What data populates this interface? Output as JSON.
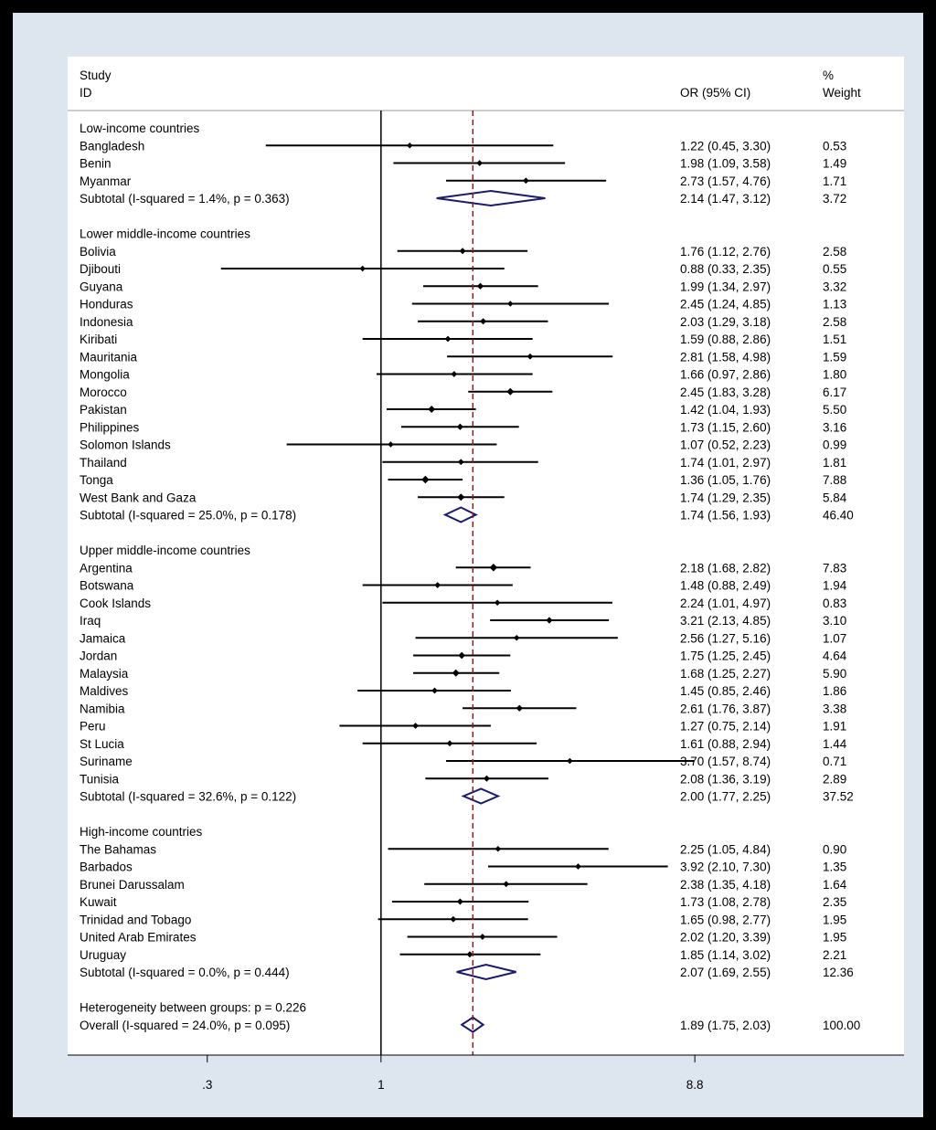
{
  "header": {
    "study_label": "Study",
    "id_label": "ID",
    "or_label": "OR (95% CI)",
    "weight_pct": "%",
    "weight_label": "Weight"
  },
  "colors": {
    "background": "#000000",
    "frame": "#dde6ee",
    "panel": "#ffffff",
    "diamond": "#1a1a6e",
    "overall_line": "#8b1a1a"
  },
  "chart_data": {
    "type": "forest",
    "x_scale": "log",
    "x_ticks": [
      0.3,
      1,
      8.8
    ],
    "x_tick_labels": [
      ".3",
      "1",
      "8.8"
    ],
    "xlim": [
      0.114,
      37.5
    ],
    "null_line": 1,
    "overall_estimate": 1.89,
    "groups": [
      {
        "name": "Low-income countries",
        "studies": [
          {
            "label": "Bangladesh",
            "or": 1.22,
            "lo": 0.45,
            "hi": 3.3,
            "ci_text": "1.22 (0.45, 3.30)",
            "weight": "0.53"
          },
          {
            "label": "Benin",
            "or": 1.98,
            "lo": 1.09,
            "hi": 3.58,
            "ci_text": "1.98 (1.09, 3.58)",
            "weight": "1.49"
          },
          {
            "label": "Myanmar",
            "or": 2.73,
            "lo": 1.57,
            "hi": 4.76,
            "ci_text": "2.73 (1.57, 4.76)",
            "weight": "1.71"
          }
        ],
        "subtotal": {
          "label": "Subtotal  (I-squared = 1.4%, p = 0.363)",
          "or": 2.14,
          "lo": 1.47,
          "hi": 3.12,
          "ci_text": "2.14 (1.47, 3.12)",
          "weight": "3.72"
        }
      },
      {
        "name": "Lower middle-income countries",
        "studies": [
          {
            "label": "Bolivia",
            "or": 1.76,
            "lo": 1.12,
            "hi": 2.76,
            "ci_text": "1.76 (1.12, 2.76)",
            "weight": "2.58"
          },
          {
            "label": "Djibouti",
            "or": 0.88,
            "lo": 0.33,
            "hi": 2.35,
            "ci_text": "0.88 (0.33, 2.35)",
            "weight": "0.55"
          },
          {
            "label": "Guyana",
            "or": 1.99,
            "lo": 1.34,
            "hi": 2.97,
            "ci_text": "1.99 (1.34, 2.97)",
            "weight": "3.32"
          },
          {
            "label": "Honduras",
            "or": 2.45,
            "lo": 1.24,
            "hi": 4.85,
            "ci_text": "2.45 (1.24, 4.85)",
            "weight": "1.13"
          },
          {
            "label": "Indonesia",
            "or": 2.03,
            "lo": 1.29,
            "hi": 3.18,
            "ci_text": "2.03 (1.29, 3.18)",
            "weight": "2.58"
          },
          {
            "label": "Kiribati",
            "or": 1.59,
            "lo": 0.88,
            "hi": 2.86,
            "ci_text": "1.59 (0.88, 2.86)",
            "weight": "1.51"
          },
          {
            "label": "Mauritania",
            "or": 2.81,
            "lo": 1.58,
            "hi": 4.98,
            "ci_text": "2.81 (1.58, 4.98)",
            "weight": "1.59"
          },
          {
            "label": "Mongolia",
            "or": 1.66,
            "lo": 0.97,
            "hi": 2.86,
            "ci_text": "1.66 (0.97, 2.86)",
            "weight": "1.80"
          },
          {
            "label": "Morocco",
            "or": 2.45,
            "lo": 1.83,
            "hi": 3.28,
            "ci_text": "2.45 (1.83, 3.28)",
            "weight": "6.17"
          },
          {
            "label": "Pakistan",
            "or": 1.42,
            "lo": 1.04,
            "hi": 1.93,
            "ci_text": "1.42 (1.04, 1.93)",
            "weight": "5.50"
          },
          {
            "label": "Philippines",
            "or": 1.73,
            "lo": 1.15,
            "hi": 2.6,
            "ci_text": "1.73 (1.15, 2.60)",
            "weight": "3.16"
          },
          {
            "label": "Solomon Islands",
            "or": 1.07,
            "lo": 0.52,
            "hi": 2.23,
            "ci_text": "1.07 (0.52, 2.23)",
            "weight": "0.99"
          },
          {
            "label": "Thailand",
            "or": 1.74,
            "lo": 1.01,
            "hi": 2.97,
            "ci_text": "1.74 (1.01, 2.97)",
            "weight": "1.81"
          },
          {
            "label": "Tonga",
            "or": 1.36,
            "lo": 1.05,
            "hi": 1.76,
            "ci_text": "1.36 (1.05, 1.76)",
            "weight": "7.88"
          },
          {
            "label": "West Bank and Gaza",
            "or": 1.74,
            "lo": 1.29,
            "hi": 2.35,
            "ci_text": "1.74 (1.29, 2.35)",
            "weight": "5.84"
          }
        ],
        "subtotal": {
          "label": "Subtotal  (I-squared = 25.0%, p = 0.178)",
          "or": 1.74,
          "lo": 1.56,
          "hi": 1.93,
          "ci_text": "1.74 (1.56, 1.93)",
          "weight": "46.40"
        }
      },
      {
        "name": "Upper middle-income countries",
        "studies": [
          {
            "label": "Argentina",
            "or": 2.18,
            "lo": 1.68,
            "hi": 2.82,
            "ci_text": "2.18 (1.68, 2.82)",
            "weight": "7.83"
          },
          {
            "label": "Botswana",
            "or": 1.48,
            "lo": 0.88,
            "hi": 2.49,
            "ci_text": "1.48 (0.88, 2.49)",
            "weight": "1.94"
          },
          {
            "label": "Cook Islands",
            "or": 2.24,
            "lo": 1.01,
            "hi": 4.97,
            "ci_text": "2.24 (1.01, 4.97)",
            "weight": "0.83"
          },
          {
            "label": "Iraq",
            "or": 3.21,
            "lo": 2.13,
            "hi": 4.85,
            "ci_text": "3.21 (2.13, 4.85)",
            "weight": "3.10"
          },
          {
            "label": "Jamaica",
            "or": 2.56,
            "lo": 1.27,
            "hi": 5.16,
            "ci_text": "2.56 (1.27, 5.16)",
            "weight": "1.07"
          },
          {
            "label": "Jordan",
            "or": 1.75,
            "lo": 1.25,
            "hi": 2.45,
            "ci_text": "1.75 (1.25, 2.45)",
            "weight": "4.64"
          },
          {
            "label": "Malaysia",
            "or": 1.68,
            "lo": 1.25,
            "hi": 2.27,
            "ci_text": "1.68 (1.25, 2.27)",
            "weight": "5.90"
          },
          {
            "label": "Maldives",
            "or": 1.45,
            "lo": 0.85,
            "hi": 2.46,
            "ci_text": "1.45 (0.85, 2.46)",
            "weight": "1.86"
          },
          {
            "label": "Namibia",
            "or": 2.61,
            "lo": 1.76,
            "hi": 3.87,
            "ci_text": "2.61 (1.76, 3.87)",
            "weight": "3.38"
          },
          {
            "label": "Peru",
            "or": 1.27,
            "lo": 0.75,
            "hi": 2.14,
            "ci_text": "1.27 (0.75, 2.14)",
            "weight": "1.91"
          },
          {
            "label": "St Lucia",
            "or": 1.61,
            "lo": 0.88,
            "hi": 2.94,
            "ci_text": "1.61 (0.88, 2.94)",
            "weight": "1.44"
          },
          {
            "label": "Suriname",
            "or": 3.7,
            "lo": 1.57,
            "hi": 8.74,
            "ci_text": "3.70 (1.57, 8.74)",
            "weight": "0.71"
          },
          {
            "label": "Tunisia",
            "or": 2.08,
            "lo": 1.36,
            "hi": 3.19,
            "ci_text": "2.08 (1.36, 3.19)",
            "weight": "2.89"
          }
        ],
        "subtotal": {
          "label": "Subtotal  (I-squared = 32.6%, p = 0.122)",
          "or": 2.0,
          "lo": 1.77,
          "hi": 2.25,
          "ci_text": "2.00 (1.77, 2.25)",
          "weight": "37.52"
        }
      },
      {
        "name": "High-income countries",
        "studies": [
          {
            "label": "The Bahamas",
            "or": 2.25,
            "lo": 1.05,
            "hi": 4.84,
            "ci_text": "2.25 (1.05, 4.84)",
            "weight": "0.90"
          },
          {
            "label": "Barbados",
            "or": 3.92,
            "lo": 2.1,
            "hi": 7.3,
            "ci_text": "3.92 (2.10, 7.30)",
            "weight": "1.35"
          },
          {
            "label": "Brunei Darussalam",
            "or": 2.38,
            "lo": 1.35,
            "hi": 4.18,
            "ci_text": "2.38 (1.35, 4.18)",
            "weight": "1.64"
          },
          {
            "label": "Kuwait",
            "or": 1.73,
            "lo": 1.08,
            "hi": 2.78,
            "ci_text": "1.73 (1.08, 2.78)",
            "weight": "2.35"
          },
          {
            "label": "Trinidad and Tobago",
            "or": 1.65,
            "lo": 0.98,
            "hi": 2.77,
            "ci_text": "1.65 (0.98, 2.77)",
            "weight": "1.95"
          },
          {
            "label": "United Arab Emirates",
            "or": 2.02,
            "lo": 1.2,
            "hi": 3.39,
            "ci_text": "2.02 (1.20, 3.39)",
            "weight": "1.95"
          },
          {
            "label": "Uruguay",
            "or": 1.85,
            "lo": 1.14,
            "hi": 3.02,
            "ci_text": "1.85 (1.14, 3.02)",
            "weight": "2.21"
          }
        ],
        "subtotal": {
          "label": "Subtotal  (I-squared = 0.0%, p = 0.444)",
          "or": 2.07,
          "lo": 1.69,
          "hi": 2.55,
          "ci_text": "2.07 (1.69, 2.55)",
          "weight": "12.36"
        }
      }
    ],
    "heterogeneity": "Heterogeneity between groups: p = 0.226",
    "overall": {
      "label": "Overall  (I-squared = 24.0%, p = 0.095)",
      "or": 1.89,
      "lo": 1.75,
      "hi": 2.03,
      "ci_text": "1.89 (1.75, 2.03)",
      "weight": "100.00"
    }
  }
}
